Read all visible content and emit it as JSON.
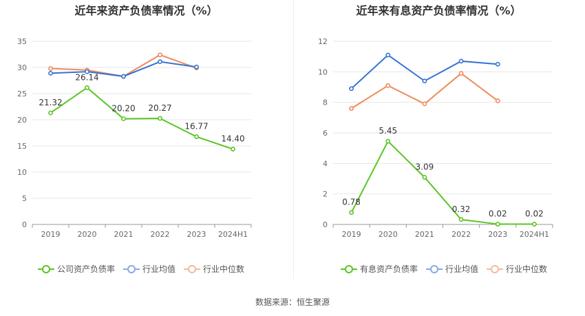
{
  "source": "数据来源：恒生聚源",
  "chart_data": [
    {
      "type": "line",
      "title": "近年来资产负债率情况（%）",
      "categories": [
        "2019",
        "2020",
        "2021",
        "2022",
        "2023",
        "2024H1"
      ],
      "ylim": [
        0,
        35
      ],
      "yticks": [
        "0",
        "5",
        "10",
        "15",
        "20",
        "25",
        "30",
        "35"
      ],
      "grid": true,
      "legend_position": "bottom",
      "series": [
        {
          "name": "公司资产负债率",
          "color": "#5ac523",
          "values": [
            21.32,
            26.14,
            20.2,
            20.27,
            16.77,
            14.4
          ],
          "labels": [
            "21.32",
            "26.14",
            "20.20",
            "20.27",
            "16.77",
            "14.40"
          ]
        },
        {
          "name": "行业均值",
          "color": "#3572d4",
          "values": [
            28.9,
            29.2,
            28.3,
            31.1,
            30.1,
            null
          ]
        },
        {
          "name": "行业中位数",
          "color": "#f08a5d",
          "values": [
            29.8,
            29.5,
            28.3,
            32.4,
            29.9,
            null
          ]
        }
      ]
    },
    {
      "type": "line",
      "title": "近年来有息资产负债率情况（%）",
      "categories": [
        "2019",
        "2020",
        "2021",
        "2022",
        "2023",
        "2024H1"
      ],
      "ylim": [
        0,
        12
      ],
      "yticks": [
        "0",
        "2",
        "4",
        "6",
        "8",
        "10",
        "12"
      ],
      "grid": true,
      "legend_position": "bottom",
      "series": [
        {
          "name": "有息资产负债率",
          "color": "#5ac523",
          "values": [
            0.78,
            5.45,
            3.09,
            0.32,
            0.02,
            0.02
          ],
          "labels": [
            "0.78",
            "5.45",
            "3.09",
            "0.32",
            "0.02",
            "0.02"
          ]
        },
        {
          "name": "行业均值",
          "color": "#3572d4",
          "values": [
            8.9,
            11.1,
            9.4,
            10.7,
            10.5,
            null
          ]
        },
        {
          "name": "行业中位数",
          "color": "#f08a5d",
          "values": [
            7.6,
            9.1,
            7.9,
            9.9,
            8.1,
            null
          ]
        }
      ]
    }
  ]
}
